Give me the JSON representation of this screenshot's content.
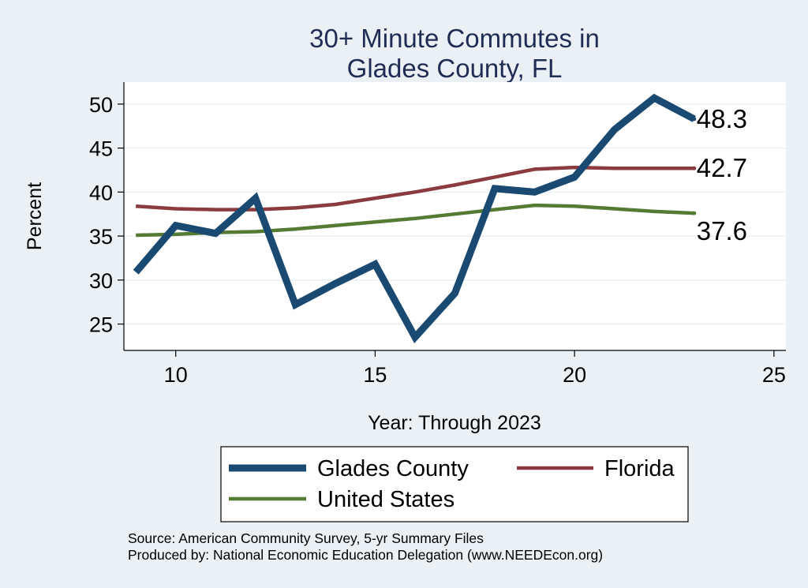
{
  "chart_data": {
    "type": "line",
    "title": [
      "30+ Minute Commutes in",
      "Glades County, FL"
    ],
    "xlabel": "Year: Through 2023",
    "ylabel": "Percent",
    "xlim": [
      8.7,
      25.3
    ],
    "ylim": [
      22,
      52.5
    ],
    "xticks": [
      10,
      15,
      20,
      25
    ],
    "yticks": [
      25,
      30,
      35,
      40,
      45,
      50
    ],
    "grid": true,
    "x": [
      9,
      10,
      11,
      12,
      13,
      14,
      15,
      16,
      17,
      18,
      19,
      20,
      21,
      22,
      23
    ],
    "series": [
      {
        "name": "Glades County",
        "color": "#1a4a72",
        "width": 9,
        "values": [
          30.9,
          36.2,
          35.3,
          39.3,
          27.2,
          29.6,
          31.8,
          23.5,
          28.5,
          40.4,
          40.0,
          41.7,
          47.1,
          50.7,
          48.3
        ],
        "end_label": "48.3"
      },
      {
        "name": "Florida",
        "color": "#8b3a3e",
        "width": 4.5,
        "values": [
          38.4,
          38.1,
          38.0,
          38.0,
          38.2,
          38.6,
          39.3,
          40.0,
          40.8,
          41.7,
          42.6,
          42.8,
          42.7,
          42.7,
          42.7
        ],
        "end_label": "42.7"
      },
      {
        "name": "United States",
        "color": "#557a32",
        "width": 4.5,
        "values": [
          35.1,
          35.2,
          35.4,
          35.5,
          35.8,
          36.2,
          36.6,
          37.0,
          37.5,
          38.0,
          38.5,
          38.4,
          38.1,
          37.8,
          37.6
        ],
        "end_label": "37.6"
      }
    ],
    "legend_position": "bottom",
    "notes": [
      "Source: American Community Survey, 5-yr Summary Files",
      "Produced by: National Economic Education Delegation (www.NEEDEcon.org)"
    ]
  }
}
